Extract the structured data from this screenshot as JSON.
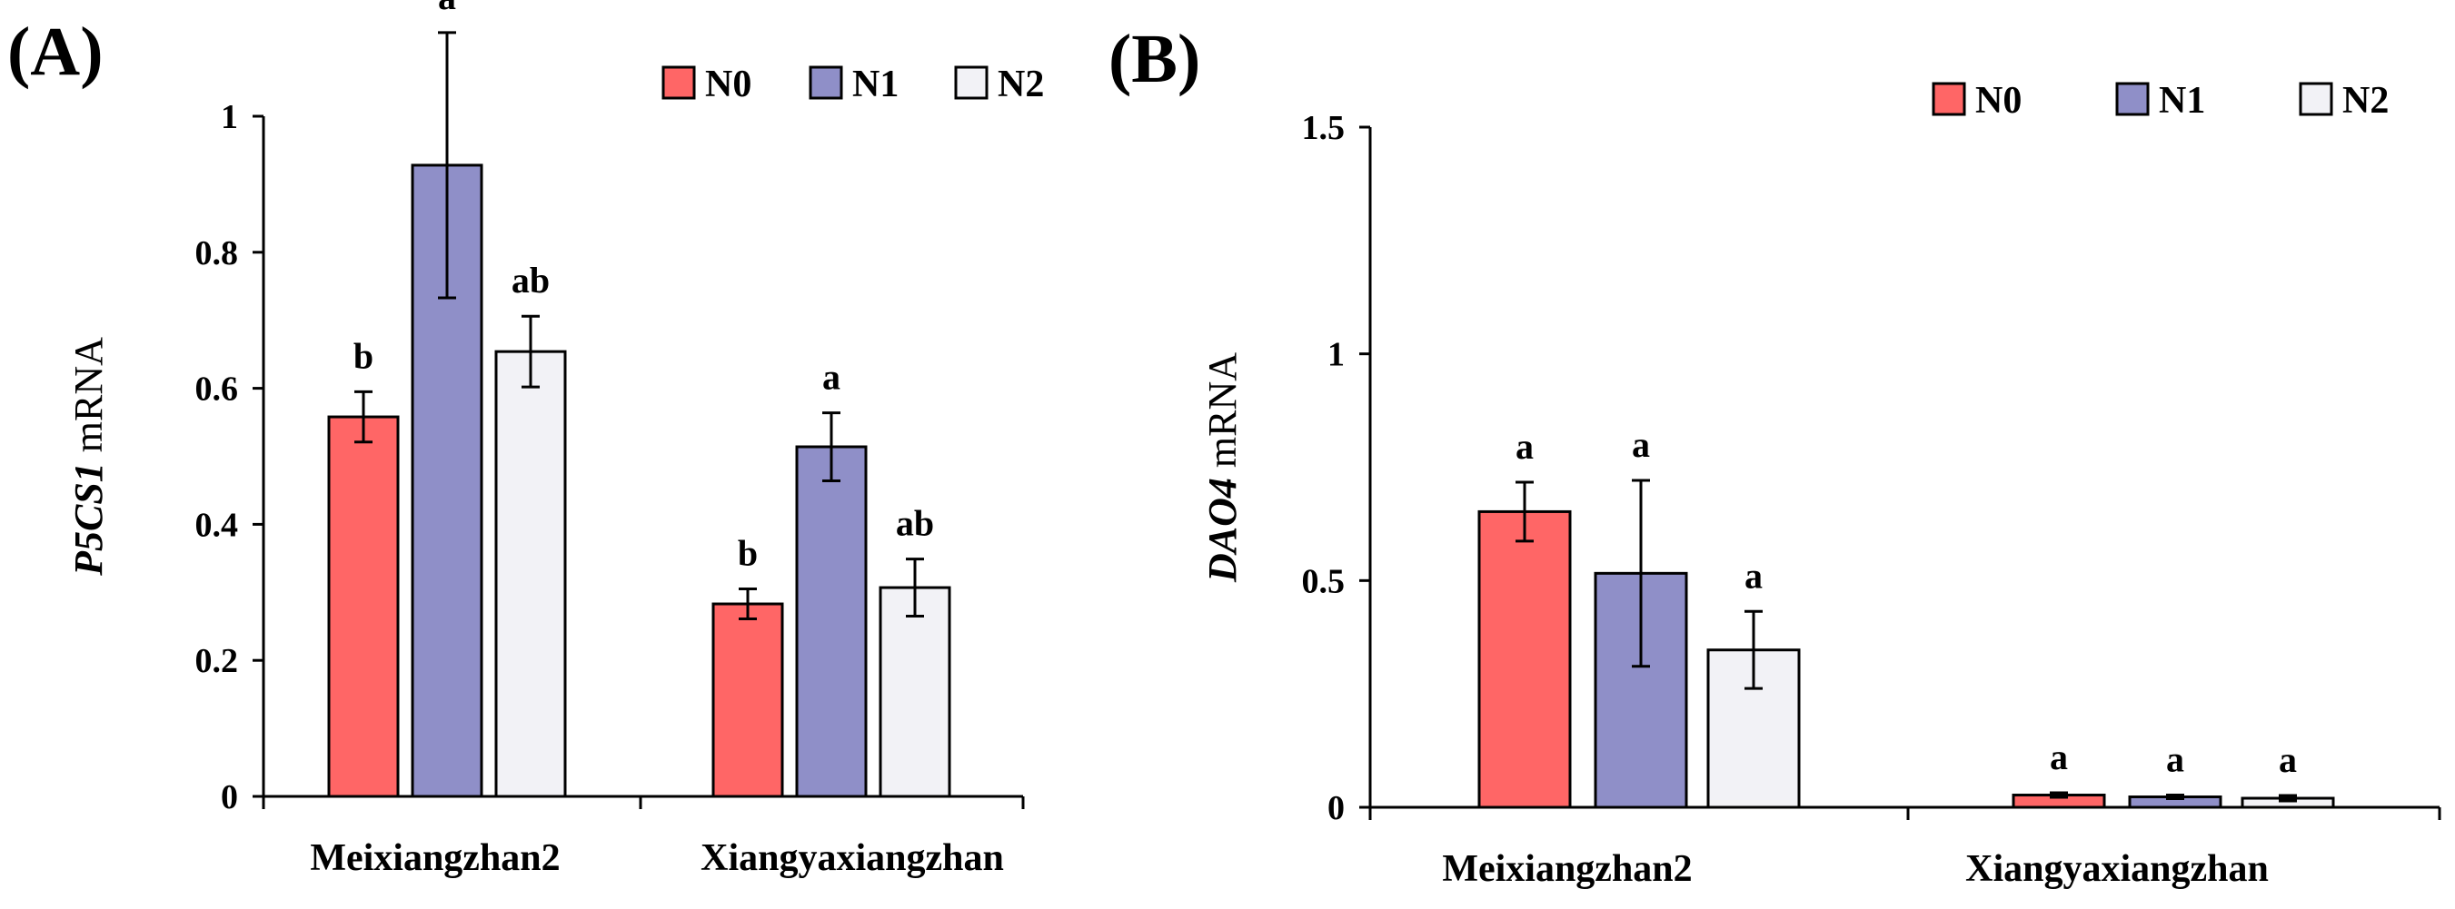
{
  "chart_data": [
    {
      "panel_label": "(A)",
      "type": "bar",
      "ylabel_italic": "P5CS1",
      "ylabel_rest": " mRNA",
      "categories": [
        "Meixiangzhan2",
        "Xiangyaxiangzhan"
      ],
      "ylim": [
        0,
        1
      ],
      "yticks": [
        0,
        0.2,
        0.4,
        0.6,
        0.8,
        1
      ],
      "ytick_labels": [
        "0",
        "0.2",
        "0.4",
        "0.6",
        "0.8",
        "1"
      ],
      "legend_position": "top-right",
      "series": [
        {
          "name": "N0",
          "color": "#ff6666",
          "values": [
            0.558,
            0.283
          ],
          "errors": [
            0.037,
            0.022
          ],
          "labels": [
            "b",
            "b"
          ]
        },
        {
          "name": "N1",
          "color": "#8f8fc8",
          "values": [
            0.928,
            0.514
          ],
          "errors": [
            0.195,
            0.05
          ],
          "labels": [
            "a",
            "a"
          ]
        },
        {
          "name": "N2",
          "color": "#f2f2f6",
          "values": [
            0.654,
            0.307
          ],
          "errors": [
            0.052,
            0.042
          ],
          "labels": [
            "ab",
            "ab"
          ]
        }
      ]
    },
    {
      "panel_label": "(B)",
      "type": "bar",
      "ylabel_italic": "DAO4",
      "ylabel_rest": " mRNA",
      "categories": [
        "Meixiangzhan2",
        "Xiangyaxiangzhan"
      ],
      "ylim": [
        0,
        1.5
      ],
      "yticks": [
        0,
        0.5,
        1,
        1.5
      ],
      "ytick_labels": [
        "0",
        "0.5",
        "1",
        "1.5"
      ],
      "legend_position": "top-right",
      "series": [
        {
          "name": "N0",
          "color": "#ff6666",
          "values": [
            0.652,
            0.027
          ],
          "errors": [
            0.065,
            0.005
          ],
          "labels": [
            "a",
            "a"
          ]
        },
        {
          "name": "N1",
          "color": "#8f8fc8",
          "values": [
            0.516,
            0.023
          ],
          "errors": [
            0.205,
            0.004
          ],
          "labels": [
            "a",
            "a"
          ]
        },
        {
          "name": "N2",
          "color": "#f2f2f6",
          "values": [
            0.347,
            0.02
          ],
          "errors": [
            0.085,
            0.006
          ],
          "labels": [
            "a",
            "a"
          ]
        }
      ]
    }
  ]
}
